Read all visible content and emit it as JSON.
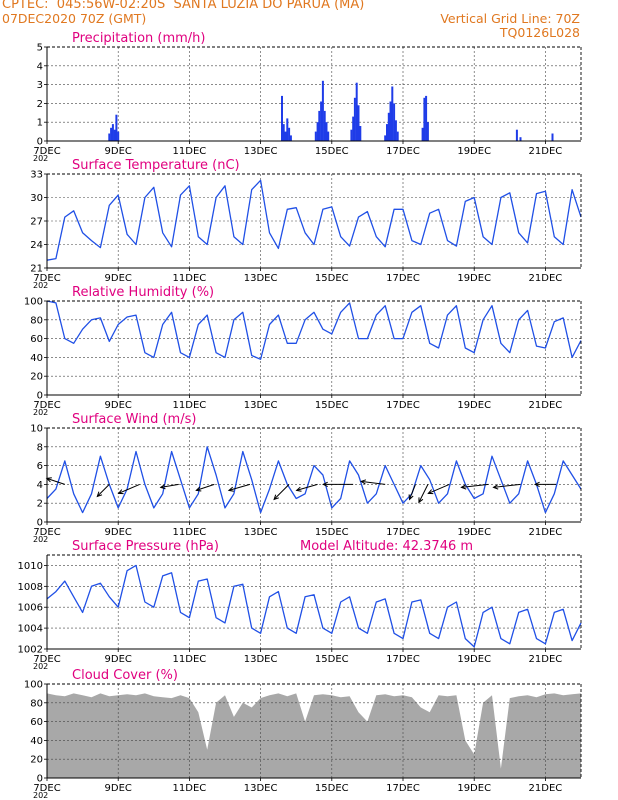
{
  "header": {
    "line1": "CPTEC:  045:56W-02:20S  SANTA LUZIA DO PARUA (MA)",
    "line2_left": "07DEC2020 70Z (GMT)",
    "line2_right": "Vertical Grid Line: 70Z",
    "line3_right": "TQ0126L028"
  },
  "x_axis": {
    "labels": [
      "7DEC",
      "9DEC",
      "11DEC",
      "13DEC",
      "15DEC",
      "17DEC",
      "19DEC",
      "21DEC"
    ],
    "label_days": [
      0,
      2,
      4,
      6,
      8,
      10,
      12,
      14
    ],
    "year_label": "202",
    "range_days": [
      0,
      15
    ]
  },
  "colors": {
    "line": "#2050e6",
    "bar": "#1f3ce8",
    "cloud": "#a8a8a8",
    "title": "#e0007f",
    "header": "#e07820"
  },
  "chart_data": [
    {
      "type": "bar",
      "title": "Precipitation (mm/h)",
      "ylim": [
        0,
        5
      ],
      "yticks": [
        0,
        1,
        2,
        3,
        4,
        5
      ],
      "x_unit": "days since 7DEC 00Z",
      "bars": [
        [
          1.75,
          0.4
        ],
        [
          1.8,
          0.7
        ],
        [
          1.85,
          0.9
        ],
        [
          1.9,
          0.6
        ],
        [
          1.95,
          1.4
        ],
        [
          2.0,
          0.5
        ],
        [
          6.6,
          2.4
        ],
        [
          6.65,
          0.9
        ],
        [
          6.7,
          0.5
        ],
        [
          6.75,
          1.2
        ],
        [
          6.8,
          0.7
        ],
        [
          6.85,
          0.3
        ],
        [
          7.55,
          0.5
        ],
        [
          7.6,
          1.0
        ],
        [
          7.65,
          1.6
        ],
        [
          7.7,
          2.1
        ],
        [
          7.75,
          3.2
        ],
        [
          7.8,
          1.6
        ],
        [
          7.85,
          1.0
        ],
        [
          7.9,
          0.5
        ],
        [
          8.55,
          0.6
        ],
        [
          8.6,
          1.3
        ],
        [
          8.65,
          2.3
        ],
        [
          8.7,
          3.1
        ],
        [
          8.75,
          1.9
        ],
        [
          8.8,
          0.8
        ],
        [
          9.5,
          0.3
        ],
        [
          9.55,
          0.9
        ],
        [
          9.6,
          1.5
        ],
        [
          9.65,
          2.1
        ],
        [
          9.7,
          2.9
        ],
        [
          9.75,
          2.0
        ],
        [
          9.8,
          1.1
        ],
        [
          9.85,
          0.5
        ],
        [
          10.55,
          0.7
        ],
        [
          10.6,
          2.3
        ],
        [
          10.65,
          2.4
        ],
        [
          10.7,
          1.0
        ],
        [
          13.2,
          0.6
        ],
        [
          13.3,
          0.2
        ],
        [
          14.2,
          0.4
        ]
      ]
    },
    {
      "type": "line",
      "title": "Surface Temperature (nC)",
      "ylim": [
        21,
        33
      ],
      "yticks": [
        21,
        24,
        27,
        30,
        33
      ],
      "x": [
        0.0,
        0.25,
        0.5,
        0.75,
        1.0,
        1.25,
        1.5,
        1.75,
        2.0,
        2.25,
        2.5,
        2.75,
        3.0,
        3.25,
        3.5,
        3.75,
        4.0,
        4.25,
        4.5,
        4.75,
        5.0,
        5.25,
        5.5,
        5.75,
        6.0,
        6.25,
        6.5,
        6.75,
        7.0,
        7.25,
        7.5,
        7.75,
        8.0,
        8.25,
        8.5,
        8.75,
        9.0,
        9.25,
        9.5,
        9.75,
        10.0,
        10.25,
        10.5,
        10.75,
        11.0,
        11.25,
        11.5,
        11.75,
        12.0,
        12.25,
        12.5,
        12.75,
        13.0,
        13.25,
        13.5,
        13.75,
        14.0,
        14.25,
        14.5,
        14.75,
        15.0
      ],
      "y": [
        22.0,
        22.2,
        27.5,
        28.3,
        25.5,
        24.5,
        23.6,
        29.0,
        30.3,
        25.3,
        24.0,
        30.0,
        31.3,
        25.5,
        23.7,
        30.3,
        31.5,
        25.0,
        24.0,
        30.0,
        31.5,
        25.0,
        24.0,
        31.0,
        32.2,
        25.5,
        23.5,
        28.5,
        28.7,
        25.5,
        24.0,
        28.5,
        28.8,
        25.0,
        23.8,
        27.5,
        28.2,
        25.0,
        23.7,
        28.5,
        28.5,
        24.5,
        24.0,
        28.0,
        28.5,
        24.5,
        23.8,
        29.5,
        30.0,
        25.0,
        24.0,
        30.0,
        30.6,
        25.5,
        24.2,
        30.5,
        30.8,
        25.0,
        24.0,
        31.0,
        27.5
      ]
    },
    {
      "type": "line",
      "title": "Relative Humidity (%)",
      "ylim": [
        0,
        100
      ],
      "yticks": [
        0,
        20,
        40,
        60,
        80,
        100
      ],
      "x": [
        0.0,
        0.25,
        0.5,
        0.75,
        1.0,
        1.25,
        1.5,
        1.75,
        2.0,
        2.25,
        2.5,
        2.75,
        3.0,
        3.25,
        3.5,
        3.75,
        4.0,
        4.25,
        4.5,
        4.75,
        5.0,
        5.25,
        5.5,
        5.75,
        6.0,
        6.25,
        6.5,
        6.75,
        7.0,
        7.25,
        7.5,
        7.75,
        8.0,
        8.25,
        8.5,
        8.75,
        9.0,
        9.25,
        9.5,
        9.75,
        10.0,
        10.25,
        10.5,
        10.75,
        11.0,
        11.25,
        11.5,
        11.75,
        12.0,
        12.25,
        12.5,
        12.75,
        13.0,
        13.25,
        13.5,
        13.75,
        14.0,
        14.25,
        14.5,
        14.75,
        15.0
      ],
      "y": [
        100.0,
        98.0,
        60.0,
        55.0,
        70.0,
        80.0,
        82.0,
        57.0,
        75.0,
        83.0,
        85.0,
        45.0,
        40.0,
        75.0,
        88.0,
        45.0,
        40.0,
        75.0,
        85.0,
        45.0,
        40.0,
        80.0,
        88.0,
        42.0,
        38.0,
        75.0,
        85.0,
        55.0,
        55.0,
        80.0,
        88.0,
        70.0,
        65.0,
        88.0,
        98.0,
        60.0,
        60.0,
        85.0,
        95.0,
        60.0,
        60.0,
        88.0,
        95.0,
        55.0,
        50.0,
        85.0,
        95.0,
        50.0,
        45.0,
        80.0,
        95.0,
        55.0,
        45.0,
        80.0,
        90.0,
        52.0,
        50.0,
        78.0,
        82.0,
        40.0,
        58.0
      ]
    },
    {
      "type": "line",
      "title": "Surface Wind (m/s)",
      "ylim": [
        0,
        10
      ],
      "yticks": [
        0,
        2,
        4,
        6,
        8,
        10
      ],
      "x": [
        0.0,
        0.25,
        0.5,
        0.75,
        1.0,
        1.25,
        1.5,
        1.75,
        2.0,
        2.25,
        2.5,
        2.75,
        3.0,
        3.25,
        3.5,
        3.75,
        4.0,
        4.25,
        4.5,
        4.75,
        5.0,
        5.25,
        5.5,
        5.75,
        6.0,
        6.25,
        6.5,
        6.75,
        7.0,
        7.25,
        7.5,
        7.75,
        8.0,
        8.25,
        8.5,
        8.75,
        9.0,
        9.25,
        9.5,
        9.75,
        10.0,
        10.25,
        10.5,
        10.75,
        11.0,
        11.25,
        11.5,
        11.75,
        12.0,
        12.25,
        12.5,
        12.75,
        13.0,
        13.25,
        13.5,
        13.75,
        14.0,
        14.25,
        14.5,
        14.75,
        15.0
      ],
      "y": [
        2.5,
        3.5,
        6.5,
        3.0,
        1.0,
        3.0,
        7.0,
        4.0,
        1.5,
        3.5,
        7.5,
        4.0,
        1.5,
        3.0,
        7.5,
        4.5,
        1.5,
        3.0,
        8.0,
        5.0,
        1.5,
        3.0,
        7.5,
        4.5,
        1.0,
        3.5,
        6.5,
        4.0,
        2.5,
        3.0,
        6.0,
        5.0,
        1.5,
        2.5,
        6.5,
        5.0,
        2.0,
        3.0,
        6.0,
        4.0,
        2.0,
        3.0,
        6.0,
        4.5,
        2.0,
        3.0,
        6.5,
        4.0,
        2.5,
        3.0,
        7.0,
        4.5,
        2.0,
        3.0,
        6.5,
        4.0,
        1.0,
        3.0,
        6.5,
        5.0,
        3.5
      ],
      "arrows": [
        {
          "t": 0.5,
          "u": -3.0,
          "v": 1.0
        },
        {
          "t": 1.75,
          "u": -2.0,
          "v": -2.0
        },
        {
          "t": 2.6,
          "u": -3.5,
          "v": -1.5
        },
        {
          "t": 3.7,
          "u": -3.0,
          "v": -0.5
        },
        {
          "t": 4.7,
          "u": -3.0,
          "v": -1.0
        },
        {
          "t": 5.7,
          "u": -3.5,
          "v": -1.0
        },
        {
          "t": 6.8,
          "u": -2.5,
          "v": -2.5
        },
        {
          "t": 7.6,
          "u": -3.5,
          "v": -1.0
        },
        {
          "t": 8.6,
          "u": -5.0,
          "v": 0.0
        },
        {
          "t": 9.5,
          "u": -4.0,
          "v": 0.5
        },
        {
          "t": 10.35,
          "u": -1.0,
          "v": -2.5
        },
        {
          "t": 10.7,
          "u": -1.5,
          "v": -3.0
        },
        {
          "t": 11.3,
          "u": -3.5,
          "v": -1.5
        },
        {
          "t": 12.4,
          "u": -4.5,
          "v": -0.5
        },
        {
          "t": 13.3,
          "u": -4.5,
          "v": -0.5
        },
        {
          "t": 14.3,
          "u": -3.5,
          "v": 0.0
        }
      ]
    },
    {
      "type": "line",
      "title": "Surface Pressure (hPa)",
      "annotation": "Model Altitude: 42.3746 m",
      "ylim": [
        1002,
        1011
      ],
      "yticks": [
        1002,
        1004,
        1006,
        1008,
        1010
      ],
      "x": [
        0.0,
        0.25,
        0.5,
        0.75,
        1.0,
        1.25,
        1.5,
        1.75,
        2.0,
        2.25,
        2.5,
        2.75,
        3.0,
        3.25,
        3.5,
        3.75,
        4.0,
        4.25,
        4.5,
        4.75,
        5.0,
        5.25,
        5.5,
        5.75,
        6.0,
        6.25,
        6.5,
        6.75,
        7.0,
        7.25,
        7.5,
        7.75,
        8.0,
        8.25,
        8.5,
        8.75,
        9.0,
        9.25,
        9.5,
        9.75,
        10.0,
        10.25,
        10.5,
        10.75,
        11.0,
        11.25,
        11.5,
        11.75,
        12.0,
        12.25,
        12.5,
        12.75,
        13.0,
        13.25,
        13.5,
        13.75,
        14.0,
        14.25,
        14.5,
        14.75,
        15.0
      ],
      "y": [
        1006.8,
        1007.5,
        1008.5,
        1007.0,
        1005.5,
        1008.0,
        1008.3,
        1007.0,
        1006.0,
        1009.5,
        1010.0,
        1006.5,
        1006.0,
        1009.0,
        1009.3,
        1005.5,
        1005.0,
        1008.5,
        1008.7,
        1005.0,
        1004.5,
        1008.0,
        1008.2,
        1004.0,
        1003.5,
        1007.0,
        1007.5,
        1004.0,
        1003.5,
        1007.0,
        1007.2,
        1004.0,
        1003.5,
        1006.5,
        1007.0,
        1004.0,
        1003.5,
        1006.5,
        1006.8,
        1003.5,
        1003.0,
        1006.5,
        1006.7,
        1003.5,
        1003.0,
        1006.0,
        1006.5,
        1003.0,
        1002.2,
        1005.5,
        1006.0,
        1003.0,
        1002.5,
        1005.5,
        1005.8,
        1003.0,
        1002.5,
        1005.5,
        1005.8,
        1002.8,
        1004.5
      ]
    },
    {
      "type": "area",
      "title": "Cloud Cover (%)",
      "ylim": [
        0,
        100
      ],
      "yticks": [
        0,
        20,
        40,
        60,
        80,
        100
      ],
      "x": [
        0.0,
        0.25,
        0.5,
        0.75,
        1.0,
        1.25,
        1.5,
        1.75,
        2.0,
        2.25,
        2.5,
        2.75,
        3.0,
        3.25,
        3.5,
        3.75,
        4.0,
        4.25,
        4.5,
        4.75,
        5.0,
        5.25,
        5.5,
        5.75,
        6.0,
        6.25,
        6.5,
        6.75,
        7.0,
        7.25,
        7.5,
        7.75,
        8.0,
        8.25,
        8.5,
        8.75,
        9.0,
        9.25,
        9.5,
        9.75,
        10.0,
        10.25,
        10.5,
        10.75,
        11.0,
        11.25,
        11.5,
        11.75,
        12.0,
        12.25,
        12.5,
        12.75,
        13.0,
        13.25,
        13.5,
        13.75,
        14.0,
        14.25,
        14.5,
        14.75,
        15.0
      ],
      "y": [
        90.0,
        88.0,
        87.0,
        90.0,
        88.0,
        86.0,
        90.0,
        87.0,
        88.0,
        89.0,
        88.0,
        90.0,
        87.0,
        86.0,
        85.0,
        88.0,
        85.0,
        70.0,
        30.0,
        80.0,
        88.0,
        65.0,
        80.0,
        75.0,
        85.0,
        88.0,
        90.0,
        87.0,
        90.0,
        60.0,
        88.0,
        89.0,
        88.0,
        86.0,
        87.0,
        70.0,
        60.0,
        88.0,
        89.0,
        87.0,
        88.0,
        86.0,
        75.0,
        70.0,
        88.0,
        87.0,
        88.0,
        40.0,
        25.0,
        80.0,
        88.0,
        10.0,
        85.0,
        87.0,
        88.0,
        86.0,
        89.0,
        90.0,
        88.0,
        89.0,
        90.0
      ]
    }
  ]
}
